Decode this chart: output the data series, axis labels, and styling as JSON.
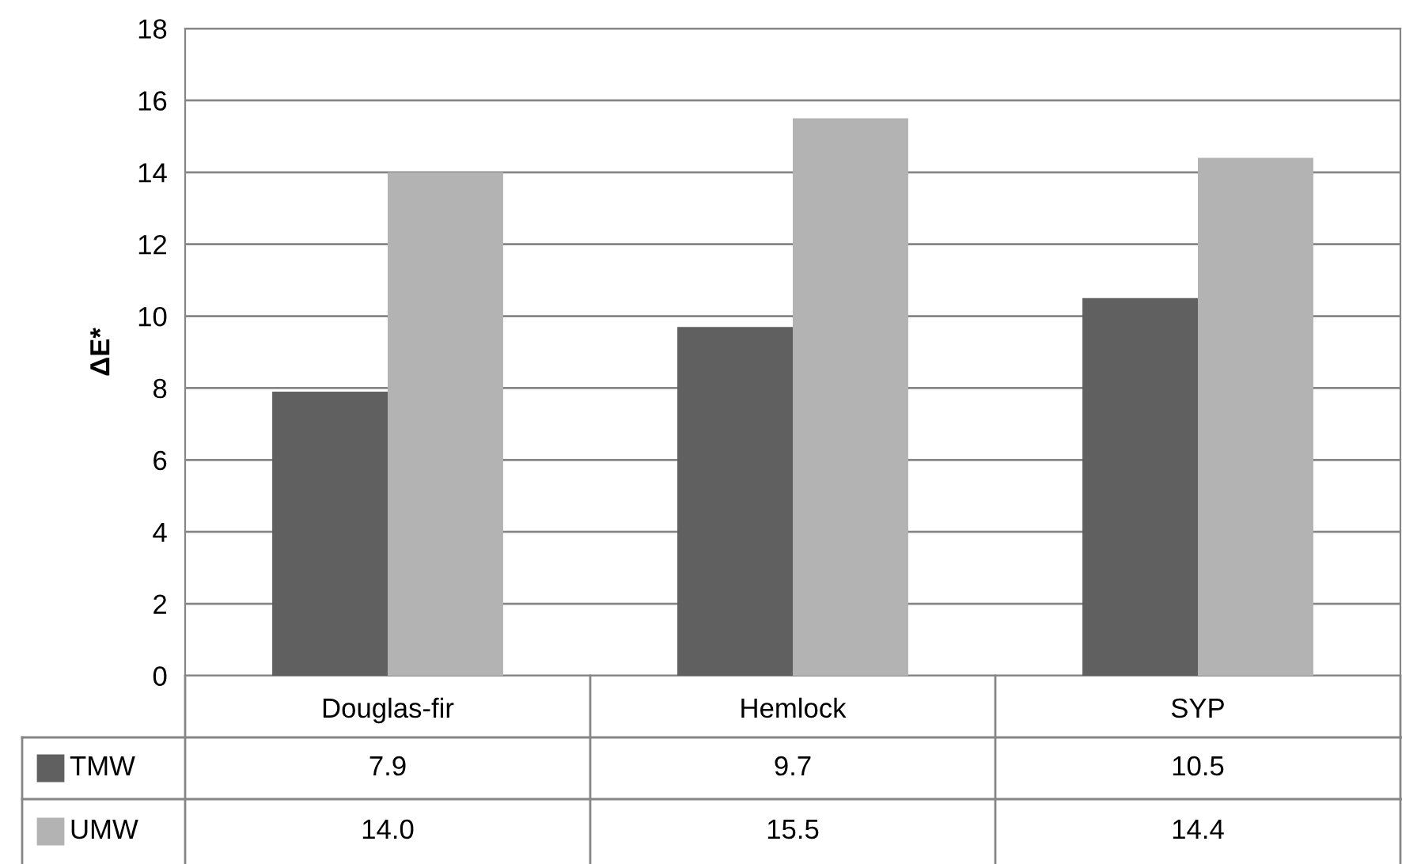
{
  "chart_data": {
    "type": "bar",
    "ylabel": "ΔE*",
    "categories": [
      "Douglas-fir",
      "Hemlock",
      "SYP"
    ],
    "series": [
      {
        "name": "TMW",
        "color": "#606060",
        "values": [
          7.9,
          9.7,
          10.5
        ],
        "value_labels": [
          "7.9",
          "9.7",
          "10.5"
        ]
      },
      {
        "name": "UMW",
        "color": "#b3b3b3",
        "values": [
          14.0,
          15.5,
          14.4
        ],
        "value_labels": [
          "14.0",
          "15.5",
          "14.4"
        ]
      }
    ],
    "ylim": [
      0,
      18
    ],
    "yticks": [
      0,
      2,
      4,
      6,
      8,
      10,
      12,
      14,
      16,
      18
    ],
    "grid": "y",
    "legend": "bottom"
  }
}
